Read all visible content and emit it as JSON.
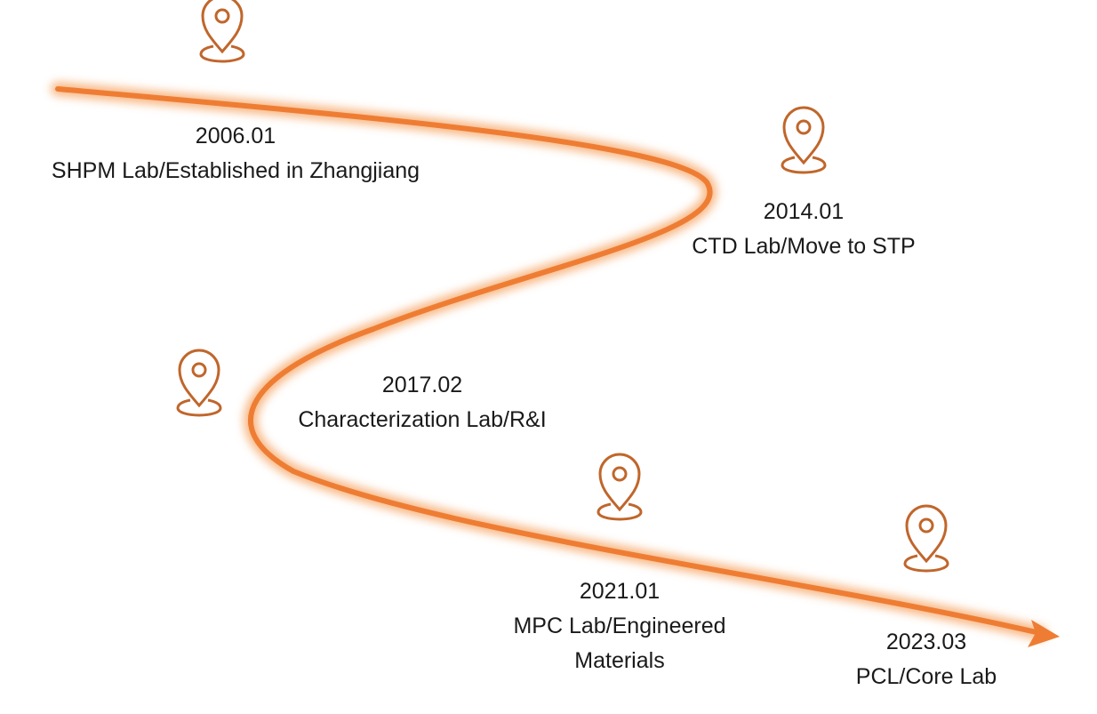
{
  "milestones": [
    {
      "date": "2006.01",
      "label": "SHPM Lab/Established in Zhangjiang"
    },
    {
      "date": "2014.01",
      "label": "CTD Lab/Move to STP"
    },
    {
      "date": "2017.02",
      "label": "Characterization Lab/R&I"
    },
    {
      "date": "2021.01",
      "label": "MPC Lab/Engineered Materials"
    },
    {
      "date": "2023.03",
      "label": "PCL/Core Lab"
    }
  ]
}
